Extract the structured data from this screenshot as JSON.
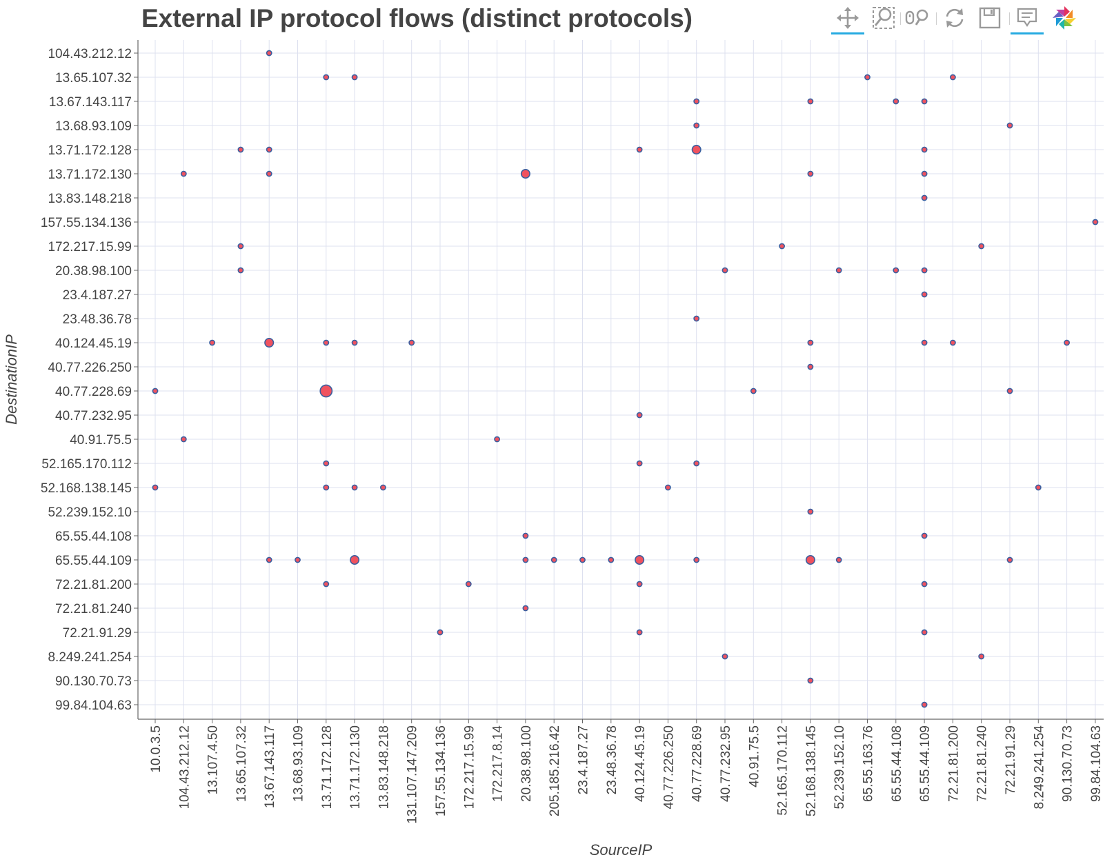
{
  "chart_data": {
    "type": "scatter",
    "title": "External IP protocol flows (distinct protocols)",
    "xlabel": "SourceIP",
    "ylabel": "DestinationIP",
    "grid": true,
    "x_categories": [
      "10.0.3.5",
      "104.43.212.12",
      "13.107.4.50",
      "13.65.107.32",
      "13.67.143.117",
      "13.68.93.109",
      "13.71.172.128",
      "13.71.172.130",
      "13.83.148.218",
      "131.107.147.209",
      "157.55.134.136",
      "172.217.15.99",
      "172.217.8.14",
      "20.38.98.100",
      "205.185.216.42",
      "23.4.187.27",
      "23.48.36.78",
      "40.124.45.19",
      "40.77.226.250",
      "40.77.228.69",
      "40.77.232.95",
      "40.91.75.5",
      "52.165.170.112",
      "52.168.138.145",
      "52.239.152.10",
      "65.55.163.76",
      "65.55.44.108",
      "65.55.44.109",
      "72.21.81.200",
      "72.21.81.240",
      "72.21.91.29",
      "8.249.241.254",
      "90.130.70.73",
      "99.84.104.63"
    ],
    "y_categories": [
      "104.43.212.12",
      "13.65.107.32",
      "13.67.143.117",
      "13.68.93.109",
      "13.71.172.128",
      "13.71.172.130",
      "13.83.148.218",
      "157.55.134.136",
      "172.217.15.99",
      "20.38.98.100",
      "23.4.187.27",
      "23.48.36.78",
      "40.124.45.19",
      "40.77.226.250",
      "40.77.228.69",
      "40.77.232.95",
      "40.91.75.5",
      "52.165.170.112",
      "52.168.138.145",
      "52.239.152.10",
      "65.55.44.108",
      "65.55.44.109",
      "72.21.81.200",
      "72.21.81.240",
      "72.21.91.29",
      "8.249.241.254",
      "90.130.70.73",
      "99.84.104.63"
    ],
    "points": [
      {
        "x": "13.67.143.117",
        "y": "104.43.212.12",
        "size": 1
      },
      {
        "x": "13.71.172.128",
        "y": "13.65.107.32",
        "size": 1
      },
      {
        "x": "13.71.172.130",
        "y": "13.65.107.32",
        "size": 1
      },
      {
        "x": "65.55.163.76",
        "y": "13.65.107.32",
        "size": 1
      },
      {
        "x": "72.21.81.200",
        "y": "13.65.107.32",
        "size": 1
      },
      {
        "x": "40.77.228.69",
        "y": "13.67.143.117",
        "size": 1
      },
      {
        "x": "52.168.138.145",
        "y": "13.67.143.117",
        "size": 1
      },
      {
        "x": "65.55.44.108",
        "y": "13.67.143.117",
        "size": 1
      },
      {
        "x": "65.55.44.109",
        "y": "13.67.143.117",
        "size": 1
      },
      {
        "x": "40.77.228.69",
        "y": "13.68.93.109",
        "size": 1
      },
      {
        "x": "72.21.91.29",
        "y": "13.68.93.109",
        "size": 1
      },
      {
        "x": "13.65.107.32",
        "y": "13.71.172.128",
        "size": 1
      },
      {
        "x": "13.67.143.117",
        "y": "13.71.172.128",
        "size": 1
      },
      {
        "x": "40.124.45.19",
        "y": "13.71.172.128",
        "size": 1
      },
      {
        "x": "40.77.228.69",
        "y": "13.71.172.128",
        "size": 2
      },
      {
        "x": "65.55.44.109",
        "y": "13.71.172.128",
        "size": 1
      },
      {
        "x": "104.43.212.12",
        "y": "13.71.172.130",
        "size": 1
      },
      {
        "x": "13.67.143.117",
        "y": "13.71.172.130",
        "size": 1
      },
      {
        "x": "20.38.98.100",
        "y": "13.71.172.130",
        "size": 2
      },
      {
        "x": "52.168.138.145",
        "y": "13.71.172.130",
        "size": 1
      },
      {
        "x": "65.55.44.109",
        "y": "13.71.172.130",
        "size": 1
      },
      {
        "x": "65.55.44.109",
        "y": "13.83.148.218",
        "size": 1
      },
      {
        "x": "99.84.104.63",
        "y": "157.55.134.136",
        "size": 1
      },
      {
        "x": "13.65.107.32",
        "y": "172.217.15.99",
        "size": 1
      },
      {
        "x": "52.165.170.112",
        "y": "172.217.15.99",
        "size": 1
      },
      {
        "x": "72.21.81.240",
        "y": "172.217.15.99",
        "size": 1
      },
      {
        "x": "13.65.107.32",
        "y": "20.38.98.100",
        "size": 1
      },
      {
        "x": "40.77.232.95",
        "y": "20.38.98.100",
        "size": 1
      },
      {
        "x": "52.239.152.10",
        "y": "20.38.98.100",
        "size": 1
      },
      {
        "x": "65.55.44.108",
        "y": "20.38.98.100",
        "size": 1
      },
      {
        "x": "65.55.44.109",
        "y": "20.38.98.100",
        "size": 1
      },
      {
        "x": "65.55.44.109",
        "y": "23.4.187.27",
        "size": 1
      },
      {
        "x": "40.77.228.69",
        "y": "23.48.36.78",
        "size": 1
      },
      {
        "x": "13.107.4.50",
        "y": "40.124.45.19",
        "size": 1
      },
      {
        "x": "13.67.143.117",
        "y": "40.124.45.19",
        "size": 2
      },
      {
        "x": "13.71.172.128",
        "y": "40.124.45.19",
        "size": 1
      },
      {
        "x": "13.71.172.130",
        "y": "40.124.45.19",
        "size": 1
      },
      {
        "x": "131.107.147.209",
        "y": "40.124.45.19",
        "size": 1
      },
      {
        "x": "52.168.138.145",
        "y": "40.124.45.19",
        "size": 1
      },
      {
        "x": "65.55.44.109",
        "y": "40.124.45.19",
        "size": 1
      },
      {
        "x": "72.21.81.200",
        "y": "40.124.45.19",
        "size": 1
      },
      {
        "x": "90.130.70.73",
        "y": "40.124.45.19",
        "size": 1
      },
      {
        "x": "52.168.138.145",
        "y": "40.77.226.250",
        "size": 1
      },
      {
        "x": "10.0.3.5",
        "y": "40.77.228.69",
        "size": 1
      },
      {
        "x": "13.71.172.128",
        "y": "40.77.228.69",
        "size": 3
      },
      {
        "x": "40.91.75.5",
        "y": "40.77.228.69",
        "size": 1
      },
      {
        "x": "72.21.91.29",
        "y": "40.77.228.69",
        "size": 1
      },
      {
        "x": "40.124.45.19",
        "y": "40.77.232.95",
        "size": 1
      },
      {
        "x": "104.43.212.12",
        "y": "40.91.75.5",
        "size": 1
      },
      {
        "x": "172.217.8.14",
        "y": "40.91.75.5",
        "size": 1
      },
      {
        "x": "13.71.172.128",
        "y": "52.165.170.112",
        "size": 1
      },
      {
        "x": "40.124.45.19",
        "y": "52.165.170.112",
        "size": 1
      },
      {
        "x": "40.77.228.69",
        "y": "52.165.170.112",
        "size": 1
      },
      {
        "x": "10.0.3.5",
        "y": "52.168.138.145",
        "size": 1
      },
      {
        "x": "13.71.172.128",
        "y": "52.168.138.145",
        "size": 1
      },
      {
        "x": "13.71.172.130",
        "y": "52.168.138.145",
        "size": 1
      },
      {
        "x": "13.83.148.218",
        "y": "52.168.138.145",
        "size": 1
      },
      {
        "x": "40.77.226.250",
        "y": "52.168.138.145",
        "size": 1
      },
      {
        "x": "8.249.241.254",
        "y": "52.168.138.145",
        "size": 1
      },
      {
        "x": "52.168.138.145",
        "y": "52.239.152.10",
        "size": 1
      },
      {
        "x": "20.38.98.100",
        "y": "65.55.44.108",
        "size": 1
      },
      {
        "x": "65.55.44.109",
        "y": "65.55.44.108",
        "size": 1
      },
      {
        "x": "13.67.143.117",
        "y": "65.55.44.109",
        "size": 1
      },
      {
        "x": "13.68.93.109",
        "y": "65.55.44.109",
        "size": 1
      },
      {
        "x": "13.71.172.130",
        "y": "65.55.44.109",
        "size": 2
      },
      {
        "x": "20.38.98.100",
        "y": "65.55.44.109",
        "size": 1
      },
      {
        "x": "205.185.216.42",
        "y": "65.55.44.109",
        "size": 1
      },
      {
        "x": "23.4.187.27",
        "y": "65.55.44.109",
        "size": 1
      },
      {
        "x": "23.48.36.78",
        "y": "65.55.44.109",
        "size": 1
      },
      {
        "x": "40.124.45.19",
        "y": "65.55.44.109",
        "size": 2
      },
      {
        "x": "40.77.228.69",
        "y": "65.55.44.109",
        "size": 1
      },
      {
        "x": "52.168.138.145",
        "y": "65.55.44.109",
        "size": 2
      },
      {
        "x": "52.239.152.10",
        "y": "65.55.44.109",
        "size": 1
      },
      {
        "x": "72.21.91.29",
        "y": "65.55.44.109",
        "size": 1
      },
      {
        "x": "13.71.172.128",
        "y": "72.21.81.200",
        "size": 1
      },
      {
        "x": "172.217.15.99",
        "y": "72.21.81.200",
        "size": 1
      },
      {
        "x": "40.124.45.19",
        "y": "72.21.81.200",
        "size": 1
      },
      {
        "x": "65.55.44.109",
        "y": "72.21.81.200",
        "size": 1
      },
      {
        "x": "20.38.98.100",
        "y": "72.21.81.240",
        "size": 1
      },
      {
        "x": "157.55.134.136",
        "y": "72.21.91.29",
        "size": 1
      },
      {
        "x": "40.124.45.19",
        "y": "72.21.91.29",
        "size": 1
      },
      {
        "x": "65.55.44.109",
        "y": "72.21.91.29",
        "size": 1
      },
      {
        "x": "40.77.232.95",
        "y": "8.249.241.254",
        "size": 1
      },
      {
        "x": "72.21.81.240",
        "y": "8.249.241.254",
        "size": 1
      },
      {
        "x": "52.168.138.145",
        "y": "90.130.70.73",
        "size": 1
      },
      {
        "x": "65.55.44.109",
        "y": "99.84.104.63",
        "size": 1
      }
    ],
    "colors": {
      "marker_fill": "#f0525f",
      "marker_line": "#3a5f9f",
      "grid": "#dde0ef",
      "axis": "#666666",
      "text": "#444444"
    }
  },
  "toolbar": {
    "tools": [
      {
        "icon": "pan-icon",
        "active": true
      },
      {
        "icon": "box-zoom-icon",
        "active": false
      },
      {
        "icon": "wheel-zoom-icon",
        "active": false
      },
      {
        "icon": "reset-icon",
        "active": false
      },
      {
        "icon": "save-icon",
        "active": false
      },
      {
        "icon": "hover-icon",
        "active": true
      },
      {
        "icon": "bokeh-logo-icon",
        "active": false
      }
    ]
  }
}
